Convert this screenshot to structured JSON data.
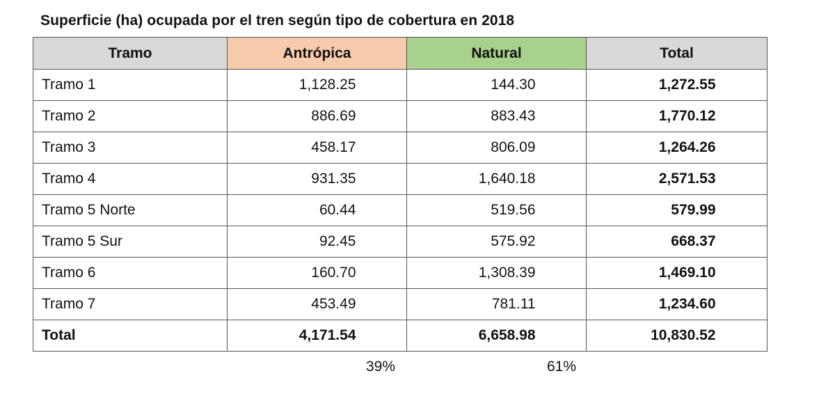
{
  "document": {
    "title": "Superficie (ha) ocupada por el tren según tipo de cobertura en 2018"
  },
  "colors": {
    "header_default": "#d9d9d9",
    "header_antropica": "#f8cbad",
    "header_natural": "#a9d18e"
  },
  "table": {
    "columns": [
      "Tramo",
      "Antrópica",
      "Natural",
      "Total"
    ],
    "rows": [
      {
        "tramo": "Tramo 1",
        "antropica": "1,128.25",
        "natural": "144.30",
        "total": "1,272.55"
      },
      {
        "tramo": "Tramo 2",
        "antropica": "886.69",
        "natural": "883.43",
        "total": "1,770.12"
      },
      {
        "tramo": "Tramo 3",
        "antropica": "458.17",
        "natural": "806.09",
        "total": "1,264.26"
      },
      {
        "tramo": "Tramo 4",
        "antropica": "931.35",
        "natural": "1,640.18",
        "total": "2,571.53"
      },
      {
        "tramo": "Tramo 5 Norte",
        "antropica": "60.44",
        "natural": "519.56",
        "total": "579.99"
      },
      {
        "tramo": "Tramo 5 Sur",
        "antropica": "92.45",
        "natural": "575.92",
        "total": "668.37"
      },
      {
        "tramo": "Tramo 6",
        "antropica": "160.70",
        "natural": "1,308.39",
        "total": "1,469.10"
      },
      {
        "tramo": "Tramo 7",
        "antropica": "453.49",
        "natural": "781.11",
        "total": "1,234.60"
      }
    ],
    "total_row": {
      "tramo": "Total",
      "antropica": "4,171.54",
      "natural": "6,658.98",
      "total": "10,830.52"
    }
  },
  "percentages": {
    "antropica": "39%",
    "natural": "61%"
  }
}
